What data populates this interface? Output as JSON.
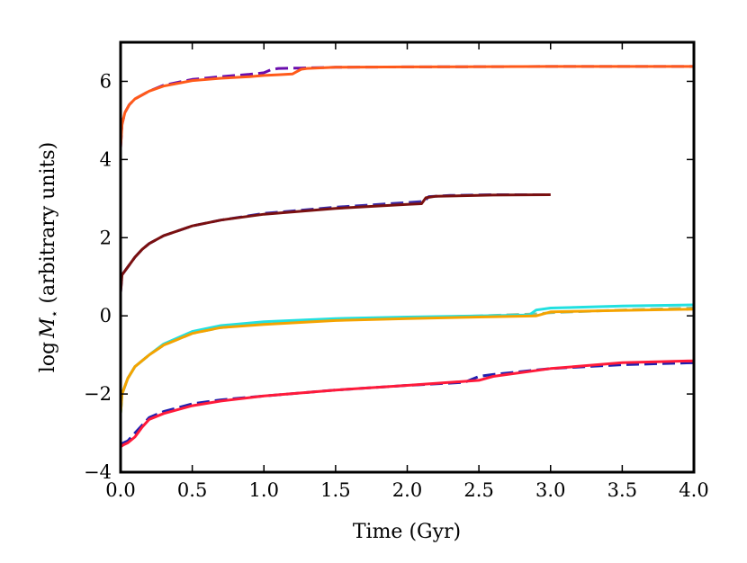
{
  "chart_data": {
    "type": "line",
    "title": "",
    "xlabel": "Time (Gyr)",
    "ylabel_prefix": "log",
    "ylabel_symbol": "M",
    "ylabel_subscript": "⋆",
    "ylabel_suffix": " (arbitrary units)",
    "xlim": [
      0.0,
      4.0
    ],
    "ylim": [
      -4,
      7
    ],
    "xticks": [
      0.0,
      0.5,
      1.0,
      1.5,
      2.0,
      2.5,
      3.0,
      3.5,
      4.0
    ],
    "xtick_labels": [
      "0.0",
      "0.5",
      "1.0",
      "1.5",
      "2.0",
      "2.5",
      "3.0",
      "3.5",
      "4.0"
    ],
    "yticks": [
      -4,
      -2,
      0,
      2,
      4,
      6
    ],
    "ytick_labels": [
      "−4",
      "−2",
      "0",
      "2",
      "4",
      "6"
    ],
    "grid": false,
    "series": [
      {
        "name": "top-dashed",
        "color": "#6a0dad",
        "dashed": true,
        "x": [
          0.0,
          0.01,
          0.03,
          0.06,
          0.1,
          0.2,
          0.3,
          0.5,
          0.7,
          0.9,
          1.0,
          1.05,
          1.1,
          1.2,
          1.25,
          1.5,
          2.0,
          3.0,
          4.0
        ],
        "y": [
          4.3,
          4.9,
          5.2,
          5.4,
          5.55,
          5.75,
          5.9,
          6.05,
          6.12,
          6.18,
          6.22,
          6.3,
          6.33,
          6.34,
          6.34,
          6.36,
          6.37,
          6.38,
          6.38
        ]
      },
      {
        "name": "top-solid",
        "color": "#ff5a1a",
        "dashed": false,
        "x": [
          0.0,
          0.01,
          0.03,
          0.06,
          0.1,
          0.2,
          0.3,
          0.5,
          0.7,
          0.9,
          1.0,
          1.1,
          1.2,
          1.23,
          1.26,
          1.3,
          1.5,
          2.0,
          3.0,
          4.0
        ],
        "y": [
          4.3,
          4.9,
          5.2,
          5.4,
          5.55,
          5.75,
          5.88,
          6.02,
          6.08,
          6.12,
          6.15,
          6.17,
          6.19,
          6.25,
          6.31,
          6.33,
          6.36,
          6.37,
          6.38,
          6.38
        ]
      },
      {
        "name": "second-dashed",
        "color": "#3a2aa8",
        "dashed": true,
        "x": [
          0.0,
          0.01,
          0.03,
          0.06,
          0.1,
          0.15,
          0.2,
          0.3,
          0.5,
          0.7,
          1.0,
          1.5,
          2.0,
          2.12,
          2.15,
          2.3,
          2.6,
          3.0
        ],
        "y": [
          0.6,
          1.05,
          1.15,
          1.3,
          1.5,
          1.7,
          1.85,
          2.05,
          2.3,
          2.45,
          2.62,
          2.78,
          2.9,
          2.93,
          3.05,
          3.08,
          3.1,
          3.1
        ]
      },
      {
        "name": "second-solid",
        "color": "#7a1010",
        "dashed": false,
        "x": [
          0.0,
          0.01,
          0.03,
          0.06,
          0.1,
          0.15,
          0.2,
          0.3,
          0.5,
          0.7,
          1.0,
          1.5,
          2.0,
          2.1,
          2.13,
          2.2,
          2.6,
          3.0
        ],
        "y": [
          0.6,
          1.05,
          1.15,
          1.3,
          1.5,
          1.7,
          1.85,
          2.05,
          2.3,
          2.45,
          2.6,
          2.75,
          2.85,
          2.87,
          3.02,
          3.06,
          3.09,
          3.1
        ]
      },
      {
        "name": "third-dashed",
        "color": "#8fbc8f",
        "dashed": true,
        "x": [
          0.0,
          0.01,
          0.05,
          0.1,
          0.2,
          0.3,
          0.5,
          0.7,
          1.0,
          1.5,
          2.0,
          2.5,
          2.9,
          3.0,
          3.5,
          4.0
        ],
        "y": [
          -2.5,
          -2.0,
          -1.6,
          -1.3,
          -1.0,
          -0.75,
          -0.45,
          -0.3,
          -0.2,
          -0.1,
          -0.05,
          0.0,
          0.05,
          0.08,
          0.15,
          0.2
        ]
      },
      {
        "name": "third-solid-cyan",
        "color": "#22e0e0",
        "dashed": false,
        "x": [
          0.0,
          0.01,
          0.05,
          0.1,
          0.2,
          0.3,
          0.5,
          0.7,
          1.0,
          1.5,
          2.0,
          2.5,
          2.85,
          2.9,
          3.0,
          3.5,
          4.0
        ],
        "y": [
          -2.5,
          -2.0,
          -1.6,
          -1.3,
          -1.0,
          -0.72,
          -0.4,
          -0.25,
          -0.15,
          -0.07,
          -0.03,
          0.0,
          0.02,
          0.15,
          0.2,
          0.25,
          0.28
        ]
      },
      {
        "name": "third-solid-orange",
        "color": "#f5a300",
        "dashed": false,
        "x": [
          0.0,
          0.01,
          0.05,
          0.1,
          0.2,
          0.3,
          0.5,
          0.7,
          1.0,
          1.5,
          2.0,
          2.5,
          2.9,
          3.0,
          3.5,
          4.0
        ],
        "y": [
          -2.5,
          -2.0,
          -1.6,
          -1.3,
          -1.0,
          -0.75,
          -0.45,
          -0.3,
          -0.22,
          -0.12,
          -0.07,
          -0.03,
          0.0,
          0.1,
          0.14,
          0.17
        ]
      },
      {
        "name": "bottom-dashed",
        "color": "#2020b0",
        "dashed": true,
        "x": [
          0.0,
          0.02,
          0.05,
          0.1,
          0.15,
          0.2,
          0.3,
          0.5,
          0.7,
          1.0,
          1.5,
          2.0,
          2.4,
          2.5,
          2.6,
          3.0,
          3.5,
          4.0
        ],
        "y": [
          -3.3,
          -3.25,
          -3.2,
          -3.0,
          -2.8,
          -2.6,
          -2.45,
          -2.25,
          -2.15,
          -2.05,
          -1.9,
          -1.78,
          -1.7,
          -1.55,
          -1.5,
          -1.35,
          -1.25,
          -1.2
        ]
      },
      {
        "name": "bottom-solid",
        "color": "#ff1a3a",
        "dashed": false,
        "x": [
          0.0,
          0.02,
          0.05,
          0.1,
          0.15,
          0.2,
          0.3,
          0.5,
          0.7,
          1.0,
          1.5,
          2.0,
          2.5,
          2.6,
          3.0,
          3.5,
          4.0
        ],
        "y": [
          -3.35,
          -3.3,
          -3.25,
          -3.1,
          -2.85,
          -2.65,
          -2.5,
          -2.3,
          -2.18,
          -2.05,
          -1.9,
          -1.78,
          -1.65,
          -1.55,
          -1.35,
          -1.2,
          -1.15
        ]
      }
    ]
  }
}
